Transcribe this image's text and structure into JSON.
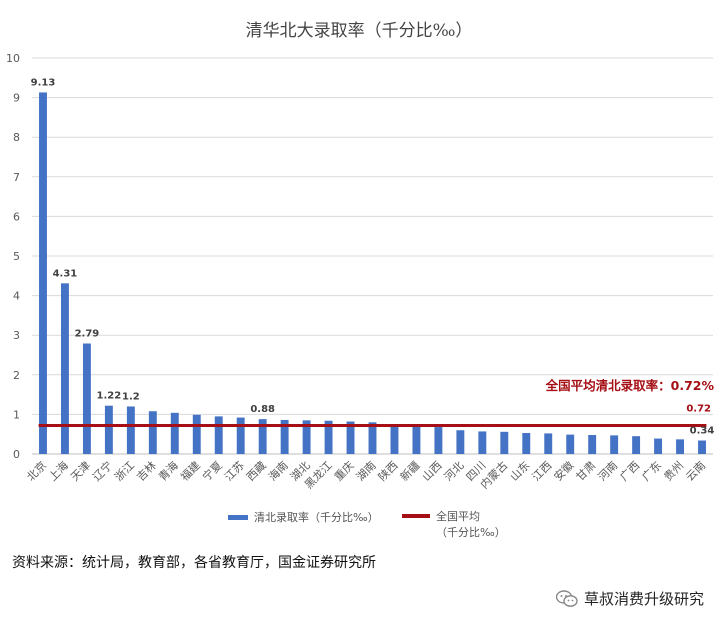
{
  "chart_data": {
    "type": "bar",
    "title": "清华北大录取率（千分比‰）",
    "categories": [
      "北京",
      "上海",
      "天津",
      "辽宁",
      "浙江",
      "吉林",
      "青海",
      "福建",
      "宁夏",
      "江苏",
      "西藏",
      "海南",
      "湖北",
      "黑龙江",
      "重庆",
      "湖南",
      "陕西",
      "新疆",
      "山西",
      "河北",
      "四川",
      "内蒙古",
      "山东",
      "江西",
      "安徽",
      "甘肃",
      "河南",
      "广西",
      "广东",
      "贵州",
      "云南"
    ],
    "series": [
      {
        "name": "清北录取率（千分比‰）",
        "color": "#4472c4",
        "values": [
          9.13,
          4.31,
          2.79,
          1.22,
          1.2,
          1.08,
          1.04,
          0.99,
          0.95,
          0.92,
          0.88,
          0.86,
          0.85,
          0.84,
          0.82,
          0.8,
          0.73,
          0.7,
          0.68,
          0.6,
          0.57,
          0.56,
          0.53,
          0.52,
          0.49,
          0.48,
          0.47,
          0.45,
          0.39,
          0.37,
          0.34
        ]
      }
    ],
    "data_labels": [
      {
        "index": 0,
        "text": "9.13"
      },
      {
        "index": 1,
        "text": "4.31"
      },
      {
        "index": 2,
        "text": "2.79"
      },
      {
        "index": 3,
        "text": "1.22"
      },
      {
        "index": 4,
        "text": "1.2"
      },
      {
        "index": 10,
        "text": "0.88"
      },
      {
        "index": 30,
        "text": "0.34"
      }
    ],
    "reference_line": {
      "name": "全国平均（千分比‰）",
      "legend_line1": "全国平均",
      "legend_line2": "（千分比‰）",
      "value": 0.72,
      "label": "0.72",
      "annotation": "全国平均清北录取率：0.72%",
      "color": "#a50f15"
    },
    "ylim": [
      0,
      10
    ],
    "yticks": [
      0,
      1,
      2,
      3,
      4,
      5,
      6,
      7,
      8,
      9,
      10
    ],
    "grid": true,
    "legend_position": "bottom"
  },
  "source_note": "资料来源：统计局，教育部，各省教育厅，国金证券研究所",
  "watermark": {
    "text": "草叔消费升级研究",
    "icon": "wechat-icon"
  }
}
